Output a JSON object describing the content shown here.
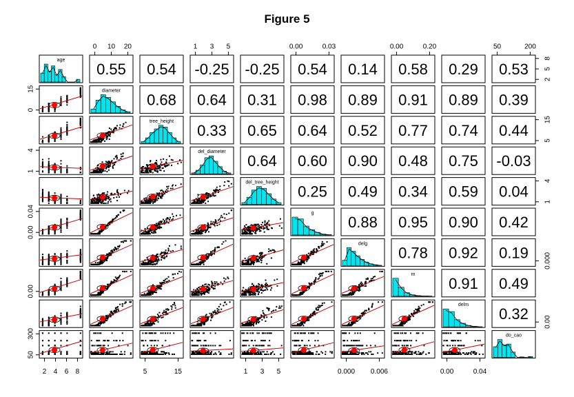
{
  "chart_data": {
    "type": "scatter",
    "subtype": "pairs-panels",
    "title": "Figure 5",
    "variables": [
      "age",
      "diameter",
      "tree_height",
      "del_diameter",
      "del_tree_height",
      "g",
      "delg",
      "m",
      "delm",
      "do_cao"
    ],
    "correlations": [
      [
        null,
        0.55,
        0.54,
        -0.25,
        -0.25,
        0.54,
        0.14,
        0.58,
        0.29,
        0.53
      ],
      [
        null,
        null,
        0.68,
        0.64,
        0.31,
        0.98,
        0.89,
        0.91,
        0.89,
        0.39
      ],
      [
        null,
        null,
        null,
        0.33,
        0.65,
        0.64,
        0.52,
        0.77,
        0.74,
        0.44
      ],
      [
        null,
        null,
        null,
        null,
        0.64,
        0.6,
        0.9,
        0.48,
        0.75,
        -0.03
      ],
      [
        null,
        null,
        null,
        null,
        null,
        0.25,
        0.49,
        0.34,
        0.59,
        0.04
      ],
      [
        null,
        null,
        null,
        null,
        null,
        null,
        0.88,
        0.95,
        0.9,
        0.42
      ],
      [
        null,
        null,
        null,
        null,
        null,
        null,
        null,
        0.78,
        0.92,
        0.19
      ],
      [
        null,
        null,
        null,
        null,
        null,
        null,
        null,
        null,
        0.91,
        0.49
      ],
      [
        null,
        null,
        null,
        null,
        null,
        null,
        null,
        null,
        null,
        0.32
      ],
      [
        null,
        null,
        null,
        null,
        null,
        null,
        null,
        null,
        null,
        null
      ]
    ],
    "correlation_labels": [
      [
        "0.55",
        "0.54",
        "-0.25",
        "-0.25",
        "0.54",
        "0.14",
        "0.58",
        "0.29",
        "0.53"
      ],
      [
        "0.68",
        "0.64",
        "0.31",
        "0.98",
        "0.89",
        "0.91",
        "0.89",
        "0.39"
      ],
      [
        "0.33",
        "0.65",
        "0.64",
        "0.52",
        "0.77",
        "0.74",
        "0.44"
      ],
      [
        "0.64",
        "0.60",
        "0.90",
        "0.48",
        "0.75",
        "-0.03"
      ],
      [
        "0.25",
        "0.49",
        "0.34",
        "0.59",
        "0.04"
      ],
      [
        "0.88",
        "0.95",
        "0.90",
        "0.42"
      ],
      [
        "0.78",
        "0.92",
        "0.19"
      ],
      [
        "0.91",
        "0.49"
      ],
      [
        "0.32"
      ]
    ],
    "histograms": [
      [
        0.5,
        1,
        0.6,
        0.9,
        0.4,
        0.7,
        0.3,
        0,
        0,
        0,
        0.15
      ],
      [
        0.2,
        0.7,
        1,
        0.85,
        0.6,
        0.35,
        0.15,
        0.05
      ],
      [
        0.1,
        0.3,
        0.6,
        0.8,
        1,
        0.9,
        0.6,
        0.3,
        0.1
      ],
      [
        0.05,
        0.2,
        0.5,
        0.9,
        1,
        0.7,
        0.4,
        0.15,
        0.05
      ],
      [
        0.1,
        0.4,
        0.8,
        1,
        0.9,
        0.6,
        0.3,
        0.1
      ],
      [
        1,
        0.9,
        0.5,
        0.3,
        0.15,
        0.05,
        0.02
      ],
      [
        0.3,
        1,
        0.8,
        0.55,
        0.35,
        0.2,
        0.1,
        0.05,
        0.02
      ],
      [
        1,
        0.5,
        0.2,
        0.08,
        0.03,
        0.01,
        0.01
      ],
      [
        1,
        0.85,
        0.4,
        0.2,
        0.08,
        0.03,
        0.01
      ],
      [
        0.6,
        1,
        0.7,
        0.75,
        0.3,
        0,
        0.03,
        0,
        0.05
      ]
    ],
    "axis_ticks": {
      "top": [
        {
          "col": 1,
          "labels": [
            "0",
            "10",
            "20"
          ]
        },
        {
          "col": 3,
          "labels": [
            "1",
            "3",
            "5"
          ]
        },
        {
          "col": 5,
          "labels": [
            "0.00",
            "0.03"
          ]
        },
        {
          "col": 7,
          "labels": [
            "0.00",
            "0.20"
          ]
        },
        {
          "col": 9,
          "labels": [
            "50",
            "200"
          ]
        }
      ],
      "bottom": [
        {
          "col": 0,
          "labels": [
            "2",
            "4",
            "6",
            "8"
          ]
        },
        {
          "col": 2,
          "labels": [
            "5",
            "15"
          ]
        },
        {
          "col": 4,
          "labels": [
            "1",
            "3",
            "5"
          ]
        },
        {
          "col": 6,
          "labels": [
            "0.000",
            "0.006"
          ]
        },
        {
          "col": 8,
          "labels": [
            "0.00",
            "0.04"
          ]
        }
      ],
      "left": [
        {
          "row": 1,
          "labels": [
            "0",
            "15"
          ]
        },
        {
          "row": 3,
          "labels": [
            "1",
            "4"
          ]
        },
        {
          "row": 5,
          "labels": [
            "0.00",
            "0.04"
          ]
        },
        {
          "row": 7,
          "labels": [
            "0.00"
          ]
        },
        {
          "row": 9,
          "labels": [
            "50",
            "300"
          ]
        }
      ],
      "right": [
        {
          "row": 0,
          "labels": [
            "2",
            "5",
            "8"
          ]
        },
        {
          "row": 2,
          "labels": [
            "5",
            "15"
          ]
        },
        {
          "row": 4,
          "labels": [
            "1",
            "4"
          ]
        },
        {
          "row": 6,
          "labels": [
            "0.000"
          ]
        },
        {
          "row": 8,
          "labels": [
            "0.00"
          ]
        }
      ]
    },
    "colors": {
      "hist": "#00e5ee",
      "fit": "#cc0000",
      "point": "#000000",
      "center": "#ff0000"
    }
  }
}
